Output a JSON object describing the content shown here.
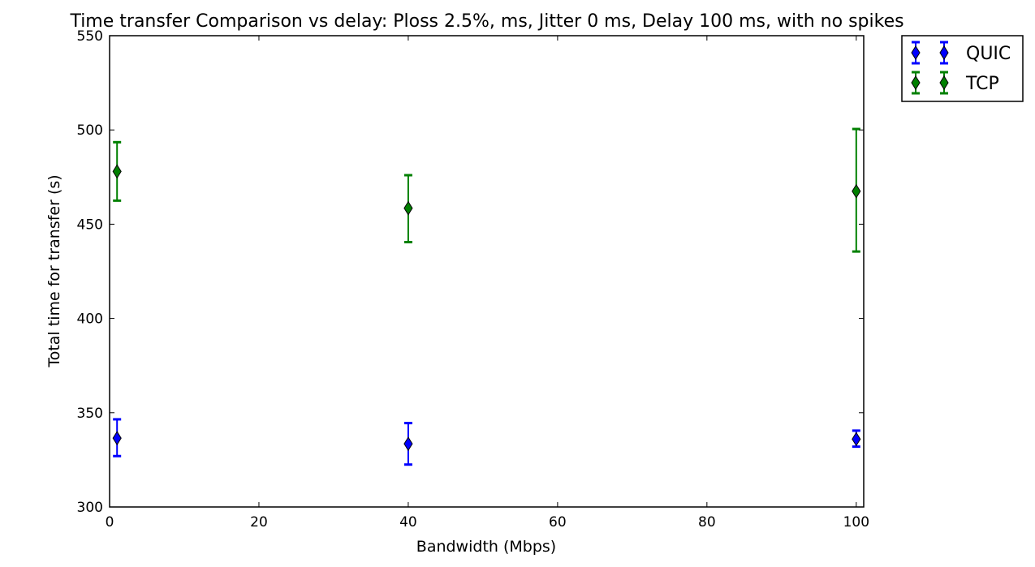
{
  "chart_data": {
    "type": "scatter",
    "title": "Time transfer Comparison vs delay: Ploss 2.5%, ms, Jitter 0 ms, Delay 100 ms, with no spikes",
    "xlabel": "Bandwidth (Mbps)",
    "ylabel": "Total time for transfer (s)",
    "xlim": [
      0,
      101
    ],
    "ylim": [
      300,
      550
    ],
    "xticks": [
      0,
      20,
      40,
      60,
      80,
      100
    ],
    "yticks": [
      300,
      350,
      400,
      450,
      500,
      550
    ],
    "xtick_labels": [
      "0",
      "20",
      "40",
      "60",
      "80",
      "100"
    ],
    "ytick_labels": [
      "300",
      "350",
      "400",
      "450",
      "500",
      "550"
    ],
    "grid": false,
    "legend_position": "outside-top-right",
    "series": [
      {
        "name": "QUIC",
        "color": "#0000ff",
        "marker": "thin-diamond",
        "x": [
          1,
          40,
          100
        ],
        "y": [
          336.5,
          333.5,
          336.0
        ],
        "error_low": [
          327.0,
          322.5,
          332.0
        ],
        "error_high": [
          346.5,
          344.5,
          340.5
        ]
      },
      {
        "name": "TCP",
        "color": "#008000",
        "marker": "thin-diamond",
        "x": [
          1,
          40,
          100
        ],
        "y": [
          478.0,
          458.5,
          467.5
        ],
        "error_low": [
          462.5,
          440.5,
          435.5
        ],
        "error_high": [
          493.5,
          476.0,
          500.5
        ]
      }
    ]
  }
}
